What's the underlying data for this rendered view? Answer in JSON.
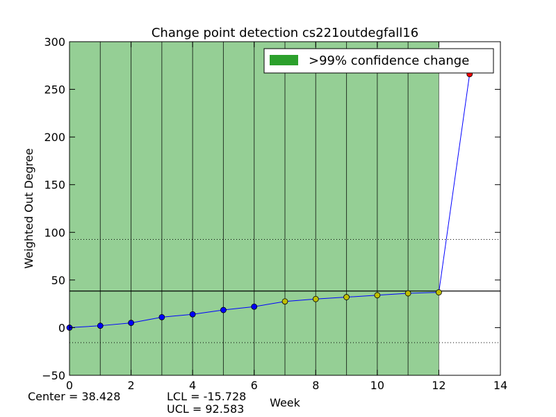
{
  "chart_data": {
    "type": "line",
    "title": "Change point detection cs221outdegfall16",
    "xlabel": "Week",
    "ylabel": "Weighted Out Degree",
    "xlim": [
      0,
      14
    ],
    "ylim": [
      -50,
      300
    ],
    "xticks": [
      0,
      2,
      4,
      6,
      8,
      10,
      12,
      14
    ],
    "yticks": [
      -50,
      0,
      50,
      100,
      150,
      200,
      250,
      300
    ],
    "x": [
      0,
      1,
      2,
      3,
      4,
      5,
      6,
      7,
      8,
      9,
      10,
      11,
      12,
      13
    ],
    "series": [
      {
        "values": [
          0,
          2,
          5,
          11,
          14,
          18.5,
          22,
          27.5,
          30,
          32,
          34,
          36,
          37,
          266
        ],
        "color": "#0000ff",
        "point_colors": [
          "#0000ff",
          "#0000ff",
          "#0000ff",
          "#0000ff",
          "#0000ff",
          "#0000ff",
          "#0000ff",
          "#bfbf00",
          "#bfbf00",
          "#bfbf00",
          "#bfbf00",
          "#bfbf00",
          "#bfbf00",
          "#ff0000"
        ]
      }
    ],
    "center_line": 38.428,
    "lcl": -15.728,
    "ucl": 92.583,
    "change_region": {
      "x_start": 0,
      "x_end": 12,
      "color": "#2ca02c",
      "vlines": [
        1,
        2,
        3,
        4,
        5,
        6,
        7,
        8,
        9,
        10,
        11
      ]
    },
    "legend": {
      "label": ">99% confidence change",
      "position": "top-right"
    },
    "grid": false
  },
  "stats": {
    "center": "Center = 38.428",
    "lcl": "LCL = -15.728",
    "ucl": "UCL = 92.583"
  }
}
